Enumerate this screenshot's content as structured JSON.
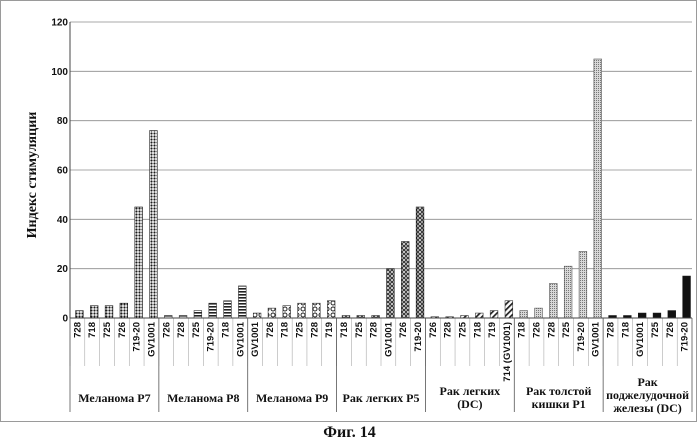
{
  "figure": {
    "caption": "Фиг. 14"
  },
  "chart_data": {
    "type": "bar",
    "title": "",
    "xlabel": "",
    "ylabel": "Индекс стимуляции",
    "ylim": [
      0,
      120
    ],
    "yticks": [
      0,
      20,
      40,
      60,
      80,
      100,
      120
    ],
    "grid": true,
    "groups": [
      {
        "label": [
          "Меланома P7"
        ],
        "pattern": "dots",
        "color": "#222222",
        "categories": [
          "728",
          "718",
          "725",
          "726",
          "719-20",
          "GV1001"
        ],
        "values": [
          3,
          5,
          5,
          6,
          45,
          76
        ]
      },
      {
        "label": [
          "Меланома P8"
        ],
        "pattern": "hstripes",
        "color": "#333333",
        "categories": [
          "726",
          "728",
          "725",
          "719-20",
          "718",
          "GV1001"
        ],
        "values": [
          1,
          1,
          3,
          6,
          7,
          13
        ]
      },
      {
        "label": [
          "Меланома P9"
        ],
        "pattern": "circles",
        "color": "#333333",
        "categories": [
          "GV1001",
          "726",
          "718",
          "725",
          "728",
          "719"
        ],
        "values": [
          2,
          4,
          5,
          6,
          6,
          7
        ]
      },
      {
        "label": [
          "Рак легких P5"
        ],
        "pattern": "rings",
        "color": "#222222",
        "categories": [
          "718",
          "725",
          "728",
          "GV1001",
          "726",
          "719-20"
        ],
        "values": [
          1,
          1,
          1,
          20,
          31,
          45
        ]
      },
      {
        "label": [
          "Рак легких",
          "(DC)"
        ],
        "pattern": "diag",
        "color": "#333333",
        "categories": [
          "726",
          "728",
          "725",
          "718",
          "719",
          "714 (GV1001)"
        ],
        "values": [
          0.5,
          0.5,
          1,
          2,
          3,
          7
        ]
      },
      {
        "label": [
          "Рак толстой",
          "кишки P1"
        ],
        "pattern": "fine",
        "color": "#555555",
        "categories": [
          "718",
          "726",
          "728",
          "725",
          "719-20",
          "GV1001"
        ],
        "values": [
          3,
          4,
          14,
          21,
          27,
          105
        ]
      },
      {
        "label": [
          "Рак",
          "поджелудочной",
          "железы  (DC)"
        ],
        "pattern": "solid",
        "color": "#111111",
        "categories": [
          "728",
          "718",
          "GV1001",
          "725",
          "726",
          "719-20"
        ],
        "values": [
          1,
          1,
          2,
          2,
          3,
          17
        ]
      }
    ]
  }
}
